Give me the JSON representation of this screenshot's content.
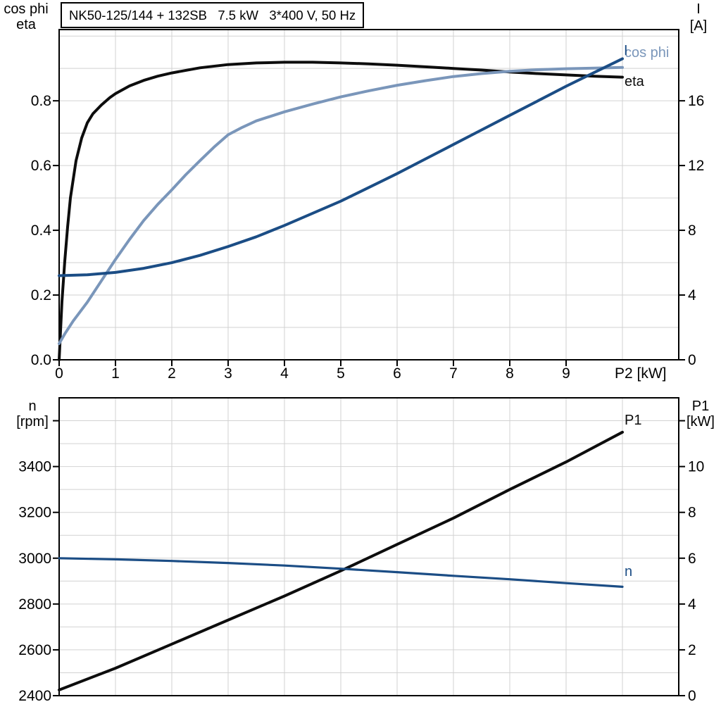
{
  "colors": {
    "background": "#ffffff",
    "axis": "#000000",
    "grid": "#d2d2d2",
    "eta_curve": "#0d0d0d",
    "cos_phi_curve": "#7a96ba",
    "current_curve": "#1b4d85"
  },
  "chart_data": [
    {
      "type": "line",
      "title": "NK50-125/144 + 132SB   7.5 kW   3*400 V, 50 Hz",
      "xlabel": "P2 [kW]",
      "x_range": [
        0,
        11.0
      ],
      "x_gridlines": [
        1,
        2,
        3,
        4,
        5,
        6,
        7,
        8,
        9,
        10
      ],
      "x_ticks": [
        {
          "value": 0,
          "label": "0"
        },
        {
          "value": 1,
          "label": "1"
        },
        {
          "value": 2,
          "label": "2"
        },
        {
          "value": 3,
          "label": "3"
        },
        {
          "value": 4,
          "label": "4"
        },
        {
          "value": 5,
          "label": "5"
        },
        {
          "value": 6,
          "label": "6"
        },
        {
          "value": 7,
          "label": "7"
        },
        {
          "value": 8,
          "label": "8"
        },
        {
          "value": 9,
          "label": "9"
        }
      ],
      "left_axis": {
        "title_lines": [
          "cos phi",
          "eta"
        ],
        "range": [
          0,
          1.02
        ],
        "ticks": [
          {
            "value": 0.0,
            "label": "0.0"
          },
          {
            "value": 0.2,
            "label": "0.2"
          },
          {
            "value": 0.4,
            "label": "0.4"
          },
          {
            "value": 0.6,
            "label": "0.6"
          },
          {
            "value": 0.8,
            "label": "0.8"
          }
        ],
        "gridline_values": [
          0.1,
          0.2,
          0.3,
          0.4,
          0.5,
          0.6,
          0.7,
          0.8,
          0.9,
          1.0
        ]
      },
      "right_axis": {
        "title_lines": [
          "I",
          "[A]"
        ],
        "range": [
          0,
          20.4
        ],
        "ticks": [
          {
            "value": 0,
            "label": "0"
          },
          {
            "value": 4,
            "label": "4"
          },
          {
            "value": 8,
            "label": "8"
          },
          {
            "value": 12,
            "label": "12"
          },
          {
            "value": 16,
            "label": "16"
          }
        ]
      },
      "series": [
        {
          "name": "eta",
          "axis": "left",
          "color": "#0d0d0d",
          "points": [
            [
              0,
              0
            ],
            [
              0.05,
              0.18
            ],
            [
              0.1,
              0.305
            ],
            [
              0.15,
              0.41
            ],
            [
              0.2,
              0.5
            ],
            [
              0.3,
              0.615
            ],
            [
              0.4,
              0.685
            ],
            [
              0.5,
              0.732
            ],
            [
              0.6,
              0.76
            ],
            [
              0.75,
              0.787
            ],
            [
              0.9,
              0.81
            ],
            [
              1,
              0.822
            ],
            [
              1.25,
              0.846
            ],
            [
              1.5,
              0.863
            ],
            [
              1.75,
              0.876
            ],
            [
              2,
              0.886
            ],
            [
              2.5,
              0.902
            ],
            [
              3,
              0.912
            ],
            [
              3.5,
              0.917
            ],
            [
              4,
              0.919
            ],
            [
              4.5,
              0.919
            ],
            [
              5,
              0.917
            ],
            [
              5.5,
              0.914
            ],
            [
              6,
              0.91
            ],
            [
              6.5,
              0.905
            ],
            [
              7,
              0.9
            ],
            [
              7.5,
              0.895
            ],
            [
              8,
              0.889
            ],
            [
              8.5,
              0.884
            ],
            [
              9,
              0.88
            ],
            [
              9.5,
              0.876
            ],
            [
              10,
              0.873
            ]
          ]
        },
        {
          "name": "cos phi",
          "axis": "left",
          "color": "#7a96ba",
          "points": [
            [
              0,
              0.05
            ],
            [
              0.1,
              0.08
            ],
            [
              0.25,
              0.12
            ],
            [
              0.5,
              0.178
            ],
            [
              0.75,
              0.244
            ],
            [
              1,
              0.31
            ],
            [
              1.25,
              0.372
            ],
            [
              1.5,
              0.43
            ],
            [
              1.75,
              0.48
            ],
            [
              2,
              0.525
            ],
            [
              2.25,
              0.572
            ],
            [
              2.5,
              0.615
            ],
            [
              2.75,
              0.657
            ],
            [
              3,
              0.695
            ],
            [
              3.25,
              0.718
            ],
            [
              3.5,
              0.738
            ],
            [
              4,
              0.766
            ],
            [
              4.5,
              0.79
            ],
            [
              5,
              0.812
            ],
            [
              5.5,
              0.831
            ],
            [
              6,
              0.848
            ],
            [
              6.5,
              0.862
            ],
            [
              7,
              0.875
            ],
            [
              7.5,
              0.884
            ],
            [
              8,
              0.891
            ],
            [
              8.5,
              0.896
            ],
            [
              9,
              0.899
            ],
            [
              9.5,
              0.901
            ],
            [
              10,
              0.903
            ]
          ]
        },
        {
          "name": "I",
          "axis": "right",
          "color": "#1b4d85",
          "points": [
            [
              0,
              5.2
            ],
            [
              0.5,
              5.25
            ],
            [
              1,
              5.4
            ],
            [
              1.5,
              5.65
            ],
            [
              2,
              6.0
            ],
            [
              2.5,
              6.45
            ],
            [
              3,
              7.0
            ],
            [
              3.5,
              7.6
            ],
            [
              4,
              8.3
            ],
            [
              4.5,
              9.05
            ],
            [
              5,
              9.8
            ],
            [
              5.5,
              10.65
            ],
            [
              6,
              11.5
            ],
            [
              6.5,
              12.4
            ],
            [
              7,
              13.3
            ],
            [
              7.5,
              14.2
            ],
            [
              8,
              15.1
            ],
            [
              8.5,
              16.0
            ],
            [
              9,
              16.9
            ],
            [
              9.5,
              17.75
            ],
            [
              10,
              18.6
            ]
          ]
        }
      ]
    },
    {
      "type": "line",
      "title": "",
      "xlabel": "",
      "x_range": [
        0,
        11.0
      ],
      "x_gridlines": [
        1,
        2,
        3,
        4,
        5,
        6,
        7,
        8,
        9,
        10
      ],
      "x_ticks": [],
      "left_axis": {
        "title_lines": [
          "n",
          "[rpm]"
        ],
        "range": [
          2400,
          3700
        ],
        "ticks": [
          {
            "value": 2400,
            "label": "2400"
          },
          {
            "value": 2600,
            "label": "2600"
          },
          {
            "value": 2800,
            "label": "2800"
          },
          {
            "value": 3000,
            "label": "3000"
          },
          {
            "value": 3200,
            "label": "3200"
          },
          {
            "value": 3400,
            "label": "3400"
          },
          {
            "value": 3600,
            "label": ""
          }
        ],
        "gridline_values": [
          2500,
          2600,
          2700,
          2800,
          2900,
          3000,
          3100,
          3200,
          3300,
          3400,
          3500,
          3600
        ]
      },
      "right_axis": {
        "title_lines": [
          "P1",
          "[kW]"
        ],
        "range": [
          0,
          13
        ],
        "ticks": [
          {
            "value": 0,
            "label": "0"
          },
          {
            "value": 2,
            "label": "2"
          },
          {
            "value": 4,
            "label": "4"
          },
          {
            "value": 6,
            "label": "6"
          },
          {
            "value": 8,
            "label": "8"
          },
          {
            "value": 10,
            "label": "10"
          },
          {
            "value": 12,
            "label": ""
          }
        ]
      },
      "series": [
        {
          "name": "P1",
          "axis": "right",
          "color": "#0d0d0d",
          "points": [
            [
              0,
              0.25
            ],
            [
              1,
              1.2
            ],
            [
              2,
              2.25
            ],
            [
              3,
              3.3
            ],
            [
              4,
              4.35
            ],
            [
              5,
              5.45
            ],
            [
              6,
              6.6
            ],
            [
              7,
              7.75
            ],
            [
              8,
              9.0
            ],
            [
              9,
              10.2
            ],
            [
              10,
              11.5
            ]
          ]
        },
        {
          "name": "n",
          "axis": "left",
          "color": "#1b4d85",
          "points": [
            [
              0,
              3000
            ],
            [
              1,
              2995
            ],
            [
              2,
              2988
            ],
            [
              3,
              2979
            ],
            [
              4,
              2968
            ],
            [
              5,
              2954
            ],
            [
              6,
              2939
            ],
            [
              7,
              2923
            ],
            [
              8,
              2908
            ],
            [
              9,
              2891
            ],
            [
              10,
              2875
            ]
          ]
        }
      ]
    }
  ]
}
